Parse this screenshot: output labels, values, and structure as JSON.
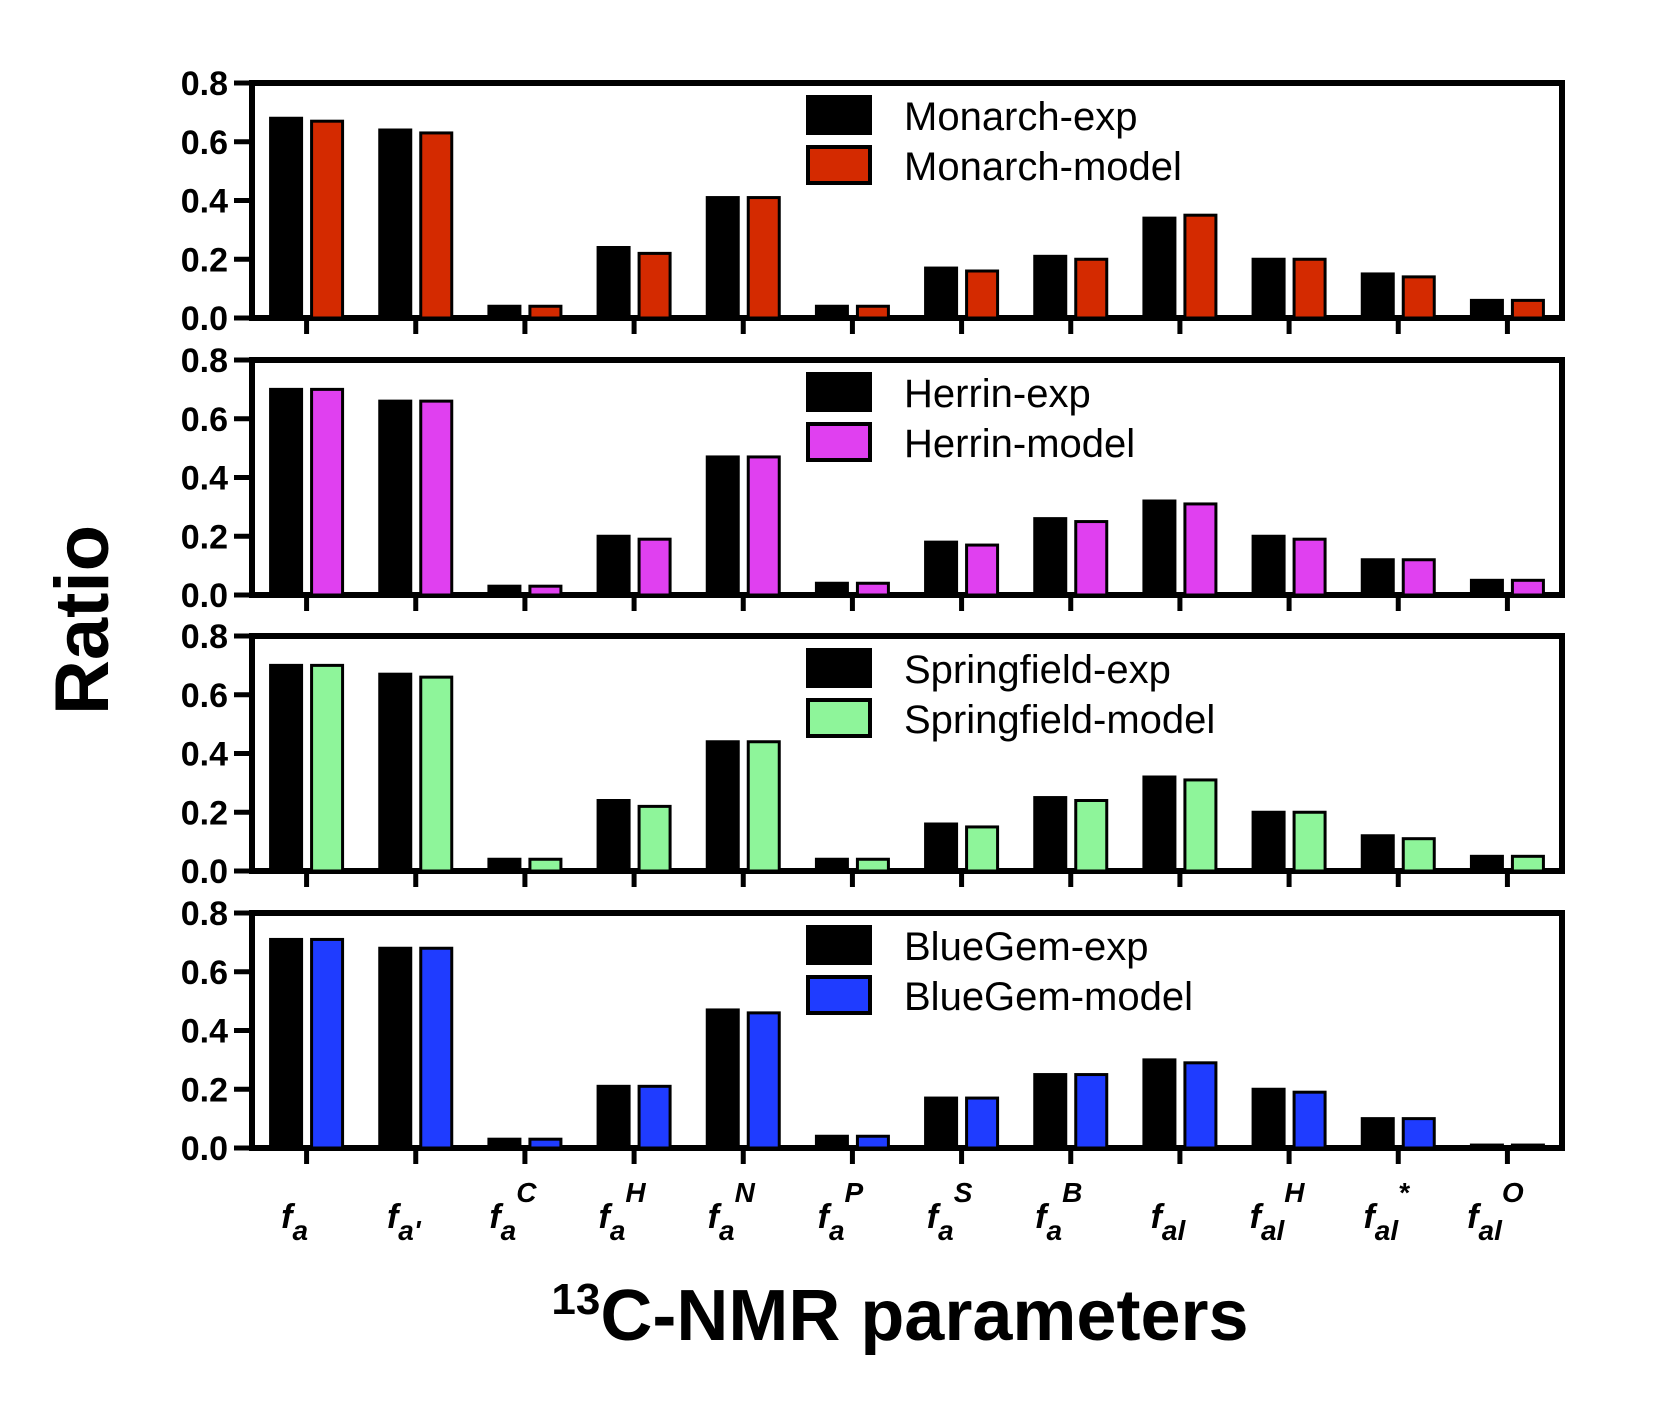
{
  "figure": {
    "ylabel": "Ratio",
    "xlabel_sup": "13",
    "xlabel_main": "C-NMR parameters"
  },
  "colors": {
    "exp": "#000000",
    "axis": "#000000"
  },
  "chart_data": [
    {
      "type": "bar",
      "panel": "Monarch",
      "categories": [
        "f_a",
        "f_a'",
        "f_a^C",
        "f_a^H",
        "f_a^N",
        "f_a^P",
        "f_a^S",
        "f_a^B",
        "f_al",
        "f_al^H",
        "f_al*",
        "f_al^O"
      ],
      "ylim": [
        0,
        0.8
      ],
      "yticks": [
        "0.0",
        "0.2",
        "0.4",
        "0.6",
        "0.8"
      ],
      "legend_position": "top-right",
      "series": [
        {
          "name": "Monarch-exp",
          "color": "#000000",
          "values": [
            0.68,
            0.64,
            0.04,
            0.24,
            0.41,
            0.04,
            0.17,
            0.21,
            0.34,
            0.2,
            0.15,
            0.06
          ]
        },
        {
          "name": "Monarch-model",
          "color": "#d42a00",
          "values": [
            0.67,
            0.63,
            0.04,
            0.22,
            0.41,
            0.04,
            0.16,
            0.2,
            0.35,
            0.2,
            0.14,
            0.06
          ]
        }
      ]
    },
    {
      "type": "bar",
      "panel": "Herrin",
      "categories": [
        "f_a",
        "f_a'",
        "f_a^C",
        "f_a^H",
        "f_a^N",
        "f_a^P",
        "f_a^S",
        "f_a^B",
        "f_al",
        "f_al^H",
        "f_al*",
        "f_al^O"
      ],
      "ylim": [
        0,
        0.8
      ],
      "yticks": [
        "0.0",
        "0.2",
        "0.4",
        "0.6",
        "0.8"
      ],
      "legend_position": "top-right",
      "series": [
        {
          "name": "Herrin-exp",
          "color": "#000000",
          "values": [
            0.7,
            0.66,
            0.03,
            0.2,
            0.47,
            0.04,
            0.18,
            0.26,
            0.32,
            0.2,
            0.12,
            0.05
          ]
        },
        {
          "name": "Herrin-model",
          "color": "#e040f0",
          "values": [
            0.7,
            0.66,
            0.03,
            0.19,
            0.47,
            0.04,
            0.17,
            0.25,
            0.31,
            0.19,
            0.12,
            0.05
          ]
        }
      ]
    },
    {
      "type": "bar",
      "panel": "Springfield",
      "categories": [
        "f_a",
        "f_a'",
        "f_a^C",
        "f_a^H",
        "f_a^N",
        "f_a^P",
        "f_a^S",
        "f_a^B",
        "f_al",
        "f_al^H",
        "f_al*",
        "f_al^O"
      ],
      "ylim": [
        0,
        0.8
      ],
      "yticks": [
        "0.0",
        "0.2",
        "0.4",
        "0.6",
        "0.8"
      ],
      "legend_position": "top-right",
      "series": [
        {
          "name": "Springfield-exp",
          "color": "#000000",
          "values": [
            0.7,
            0.67,
            0.04,
            0.24,
            0.44,
            0.04,
            0.16,
            0.25,
            0.32,
            0.2,
            0.12,
            0.05
          ]
        },
        {
          "name": "Springfield-model",
          "color": "#8ef59a",
          "values": [
            0.7,
            0.66,
            0.04,
            0.22,
            0.44,
            0.04,
            0.15,
            0.24,
            0.31,
            0.2,
            0.11,
            0.05
          ]
        }
      ]
    },
    {
      "type": "bar",
      "panel": "BlueGem",
      "categories": [
        "f_a",
        "f_a'",
        "f_a^C",
        "f_a^H",
        "f_a^N",
        "f_a^P",
        "f_a^S",
        "f_a^B",
        "f_al",
        "f_al^H",
        "f_al*",
        "f_al^O"
      ],
      "ylim": [
        0,
        0.8
      ],
      "yticks": [
        "0.0",
        "0.2",
        "0.4",
        "0.6",
        "0.8"
      ],
      "legend_position": "top-right",
      "series": [
        {
          "name": "BlueGem-exp",
          "color": "#000000",
          "values": [
            0.71,
            0.68,
            0.03,
            0.21,
            0.47,
            0.04,
            0.17,
            0.25,
            0.3,
            0.2,
            0.1,
            0.01
          ]
        },
        {
          "name": "BlueGem-model",
          "color": "#1f3cff",
          "values": [
            0.71,
            0.68,
            0.03,
            0.21,
            0.46,
            0.04,
            0.17,
            0.25,
            0.29,
            0.19,
            0.1,
            0.01
          ]
        }
      ]
    }
  ],
  "x_tick_labels": [
    {
      "base": "f",
      "sub": "a",
      "sup": ""
    },
    {
      "base": "f",
      "sub": "a'",
      "sup": ""
    },
    {
      "base": "f",
      "sub": "a",
      "sup": "C"
    },
    {
      "base": "f",
      "sub": "a",
      "sup": "H"
    },
    {
      "base": "f",
      "sub": "a",
      "sup": "N"
    },
    {
      "base": "f",
      "sub": "a",
      "sup": "P"
    },
    {
      "base": "f",
      "sub": "a",
      "sup": "S"
    },
    {
      "base": "f",
      "sub": "a",
      "sup": "B"
    },
    {
      "base": "f",
      "sub": "al",
      "sup": ""
    },
    {
      "base": "f",
      "sub": "al",
      "sup": "H"
    },
    {
      "base": "f",
      "sub": "al",
      "sup": "*"
    },
    {
      "base": "f",
      "sub": "al",
      "sup": "O"
    }
  ]
}
